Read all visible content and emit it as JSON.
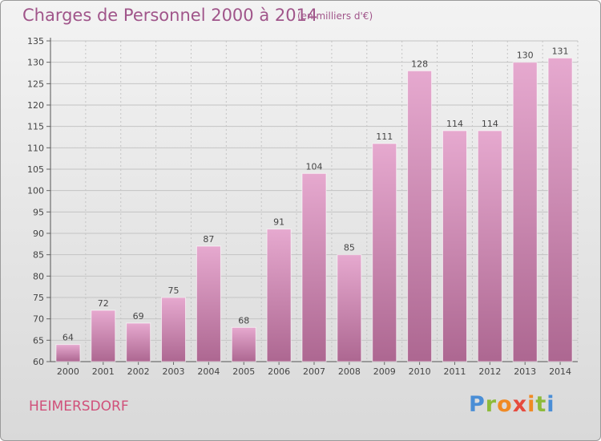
{
  "header": {
    "title": "Charges de Personnel 2000 à 2014",
    "subtitle": "(en milliers d'€)"
  },
  "footer": {
    "commune": "HEIMERSDORF",
    "logo_text": "Proxiti"
  },
  "colors": {
    "bar_top": "#e6a9cf",
    "bar_bottom": "#ad6791",
    "title": "#a0558a",
    "commune": "#d0507a",
    "grid": "#c4c4c4"
  },
  "chart_data": {
    "type": "bar",
    "title": "Charges de Personnel 2000 à 2014",
    "subtitle": "(en milliers d'€)",
    "categories": [
      "2000",
      "2001",
      "2002",
      "2003",
      "2004",
      "2005",
      "2006",
      "2007",
      "2008",
      "2009",
      "2010",
      "2011",
      "2012",
      "2013",
      "2014"
    ],
    "values": [
      64,
      72,
      69,
      75,
      87,
      68,
      91,
      104,
      85,
      111,
      128,
      114,
      114,
      130,
      131
    ],
    "ylim": [
      60,
      135
    ],
    "yticks": [
      60,
      65,
      70,
      75,
      80,
      85,
      90,
      95,
      100,
      105,
      110,
      115,
      120,
      125,
      130,
      135
    ],
    "grid": true,
    "data_labels": true
  }
}
